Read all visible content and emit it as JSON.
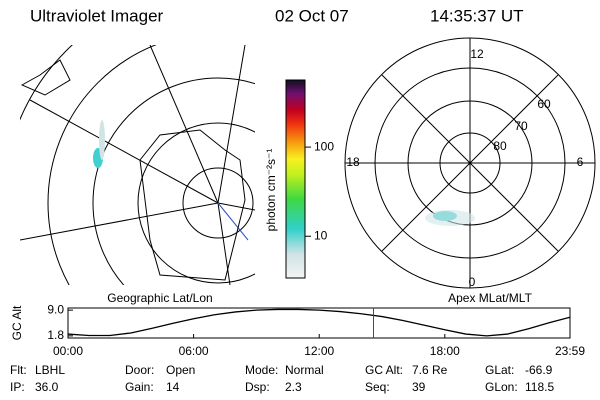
{
  "header": {
    "title": "Ultraviolet Imager",
    "date": "02 Oct 07",
    "time": "14:35:37 UT"
  },
  "colorbar": {
    "label": "photon cm⁻²s⁻¹",
    "log_scale": true,
    "ylim": [
      3.4,
      566
    ],
    "yticks": [
      10,
      100
    ]
  },
  "left_map": {
    "caption": "Geographic Lat/Lon"
  },
  "right_map": {
    "caption": "Apex MLat/MLT",
    "mlt_labels": {
      "top": "12",
      "right": "6",
      "bottom": "0",
      "left": "18"
    },
    "lat_labels": [
      "60",
      "70",
      "80"
    ]
  },
  "chart_data": {
    "type": "line",
    "y_label": "GC Alt",
    "x": [
      0,
      1,
      2,
      3,
      4,
      5,
      6,
      7,
      8,
      9,
      10,
      11,
      12,
      13,
      14,
      15,
      16,
      17,
      18,
      19,
      20,
      21,
      22,
      23,
      23.98
    ],
    "series": [
      {
        "color": "#000000",
        "values": [
          2.3,
          1.9,
          1.9,
          2.6,
          3.9,
          5.3,
          6.6,
          7.7,
          8.5,
          9.0,
          9.2,
          9.2,
          9.0,
          8.6,
          8.0,
          7.2,
          6.1,
          4.8,
          3.5,
          2.3,
          1.8,
          2.3,
          3.8,
          5.5,
          7.0
        ]
      }
    ],
    "current_time_x": 14.594,
    "current_time_color": "#ff0000",
    "xlim": [
      0,
      23.98
    ],
    "ylim": [
      1.2,
      9.6
    ],
    "xticks": [
      {
        "value": 0,
        "label": "00:00"
      },
      {
        "value": 6,
        "label": "06:00"
      },
      {
        "value": 12,
        "label": "12:00"
      },
      {
        "value": 18,
        "label": "18:00"
      },
      {
        "value": 23.98,
        "label": "23:59"
      }
    ],
    "yticks": [
      {
        "value": 9,
        "label": "9.0"
      },
      1.8
    ]
  },
  "footer": [
    [
      {
        "label": "Flt:",
        "value": "LBHL"
      },
      {
        "label": "Door:",
        "value": "Open"
      },
      {
        "label": "Mode:",
        "value": "Normal"
      },
      {
        "label": "GC Alt:",
        "value": "7.6 Re"
      },
      {
        "label": "GLat:",
        "value": "-66.9"
      }
    ],
    [
      {
        "label": "IP:",
        "value": "36.0"
      },
      {
        "label": "Gain:",
        "value": "14"
      },
      {
        "label": "Dsp:",
        "value": "2.3"
      },
      {
        "label": "Seq:",
        "value": "39"
      },
      {
        "label": "GLon:",
        "value": "118.5"
      }
    ]
  ]
}
